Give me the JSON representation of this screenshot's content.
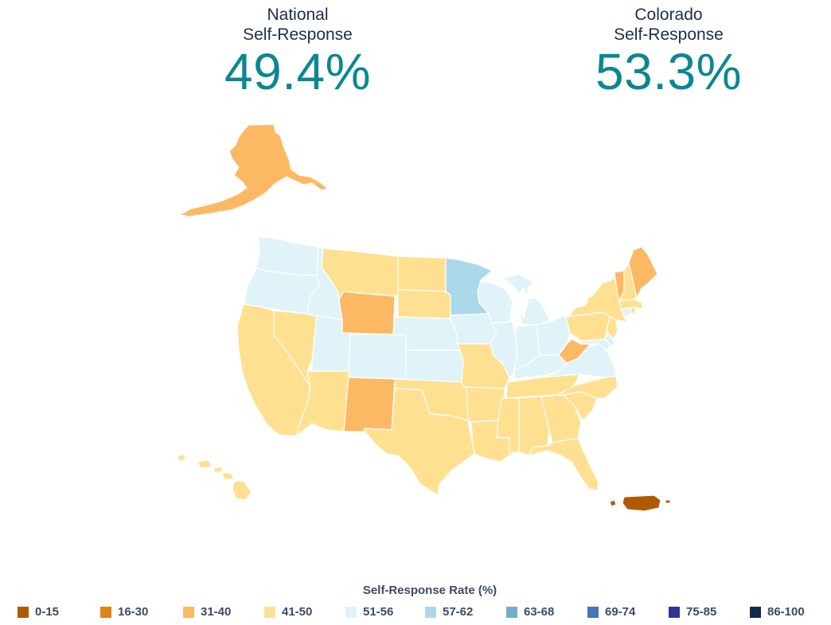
{
  "national": {
    "label_line1": "National",
    "label_line2": "Self-Response",
    "value": "49.4%"
  },
  "colorado": {
    "label_line1": "Colorado",
    "label_line2": "Self-Response",
    "value": "53.3%"
  },
  "colors": {
    "0-15": "#b05a00",
    "16-30": "#e08214",
    "31-40": "#fdb863",
    "41-50": "#fee090",
    "51-56": "#e0f3f8",
    "57-62": "#abd9e9",
    "63-68": "#74add1",
    "69-74": "#4575b4",
    "75-85": "#313695",
    "86-100": "#112a4a"
  },
  "legend": {
    "title": "Self-Response Rate (%)",
    "items": [
      {
        "label": "0-15",
        "color": "#b05a00"
      },
      {
        "label": "16-30",
        "color": "#e08214"
      },
      {
        "label": "31-40",
        "color": "#fdb863"
      },
      {
        "label": "41-50",
        "color": "#fee090"
      },
      {
        "label": "51-56",
        "color": "#e0f3f8"
      },
      {
        "label": "57-62",
        "color": "#abd9e9"
      },
      {
        "label": "63-68",
        "color": "#74add1"
      },
      {
        "label": "69-74",
        "color": "#4575b4"
      },
      {
        "label": "75-85",
        "color": "#313695"
      },
      {
        "label": "86-100",
        "color": "#112a4a"
      }
    ]
  },
  "regions": [
    {
      "name": "alaska",
      "bin": "31-40"
    },
    {
      "name": "washington",
      "bin": "51-56"
    },
    {
      "name": "oregon",
      "bin": "51-56"
    },
    {
      "name": "california",
      "bin": "41-50"
    },
    {
      "name": "nevada",
      "bin": "41-50"
    },
    {
      "name": "idaho",
      "bin": "51-56"
    },
    {
      "name": "montana",
      "bin": "41-50"
    },
    {
      "name": "wyoming",
      "bin": "31-40"
    },
    {
      "name": "utah",
      "bin": "51-56"
    },
    {
      "name": "colorado",
      "bin": "51-56"
    },
    {
      "name": "arizona",
      "bin": "41-50"
    },
    {
      "name": "new-mexico",
      "bin": "31-40"
    },
    {
      "name": "north-dakota",
      "bin": "41-50"
    },
    {
      "name": "south-dakota",
      "bin": "41-50"
    },
    {
      "name": "nebraska",
      "bin": "51-56"
    },
    {
      "name": "kansas",
      "bin": "51-56"
    },
    {
      "name": "oklahoma",
      "bin": "41-50"
    },
    {
      "name": "texas",
      "bin": "41-50"
    },
    {
      "name": "minnesota",
      "bin": "57-62"
    },
    {
      "name": "iowa",
      "bin": "51-56"
    },
    {
      "name": "missouri",
      "bin": "41-50"
    },
    {
      "name": "arkansas",
      "bin": "41-50"
    },
    {
      "name": "louisiana",
      "bin": "41-50"
    },
    {
      "name": "wisconsin",
      "bin": "51-56"
    },
    {
      "name": "illinois",
      "bin": "51-56"
    },
    {
      "name": "michigan",
      "bin": "51-56"
    },
    {
      "name": "indiana",
      "bin": "51-56"
    },
    {
      "name": "ohio",
      "bin": "51-56"
    },
    {
      "name": "kentucky",
      "bin": "51-56"
    },
    {
      "name": "tennessee",
      "bin": "41-50"
    },
    {
      "name": "mississippi",
      "bin": "41-50"
    },
    {
      "name": "alabama",
      "bin": "41-50"
    },
    {
      "name": "georgia",
      "bin": "41-50"
    },
    {
      "name": "florida",
      "bin": "41-50"
    },
    {
      "name": "south-carolina",
      "bin": "41-50"
    },
    {
      "name": "north-carolina",
      "bin": "41-50"
    },
    {
      "name": "virginia",
      "bin": "51-56"
    },
    {
      "name": "west-virginia",
      "bin": "31-40"
    },
    {
      "name": "maryland",
      "bin": "51-56"
    },
    {
      "name": "delaware",
      "bin": "51-56"
    },
    {
      "name": "pennsylvania",
      "bin": "41-50"
    },
    {
      "name": "new-jersey",
      "bin": "41-50"
    },
    {
      "name": "new-york",
      "bin": "41-50"
    },
    {
      "name": "connecticut",
      "bin": "51-56"
    },
    {
      "name": "rhode-island",
      "bin": "41-50"
    },
    {
      "name": "massachusetts",
      "bin": "41-50"
    },
    {
      "name": "vermont",
      "bin": "31-40"
    },
    {
      "name": "new-hampshire",
      "bin": "41-50"
    },
    {
      "name": "maine",
      "bin": "31-40"
    },
    {
      "name": "hawaii",
      "bin": "41-50"
    },
    {
      "name": "puerto-rico",
      "bin": "0-15"
    }
  ]
}
